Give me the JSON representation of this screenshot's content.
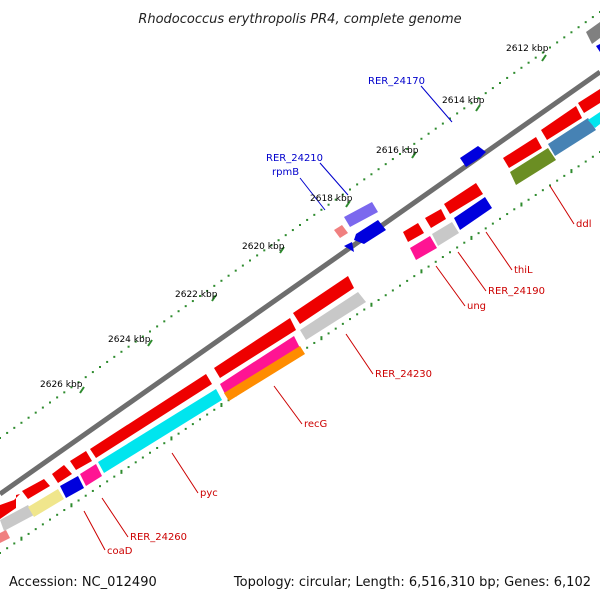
{
  "title": "Rhodococcus erythropolis PR4, complete genome",
  "footer": {
    "accession": "Accession: NC_012490",
    "summary": "Topology: circular; Length: 6,516,310 bp; Genes: 6,102"
  },
  "colors": {
    "backbone": "#6e6e6e",
    "tick_dot": "#2e8b2e",
    "tick_major": "#2e8b2e",
    "label_blue": "#0000cc",
    "label_red": "#cc0000"
  },
  "ticks": [
    {
      "label": "2612 kbp"
    },
    {
      "label": "2614 kbp"
    },
    {
      "label": "2616 kbp"
    },
    {
      "label": "2618 kbp"
    },
    {
      "label": "2620 kbp"
    },
    {
      "label": "2622 kbp"
    },
    {
      "label": "2624 kbp"
    },
    {
      "label": "2626 kbp"
    }
  ],
  "gene_labels": [
    {
      "text": "RER_24170",
      "color": "blue"
    },
    {
      "text": "RER_24210",
      "color": "blue"
    },
    {
      "text": "rpmB",
      "color": "blue"
    },
    {
      "text": "ddl",
      "color": "red"
    },
    {
      "text": "thiL",
      "color": "red"
    },
    {
      "text": "RER_24190",
      "color": "red"
    },
    {
      "text": "ung",
      "color": "red"
    },
    {
      "text": "RER_24230",
      "color": "red"
    },
    {
      "text": "recG",
      "color": "red"
    },
    {
      "text": "pyc",
      "color": "red"
    },
    {
      "text": "RER_24260",
      "color": "red"
    },
    {
      "text": "coaD",
      "color": "red"
    }
  ]
}
